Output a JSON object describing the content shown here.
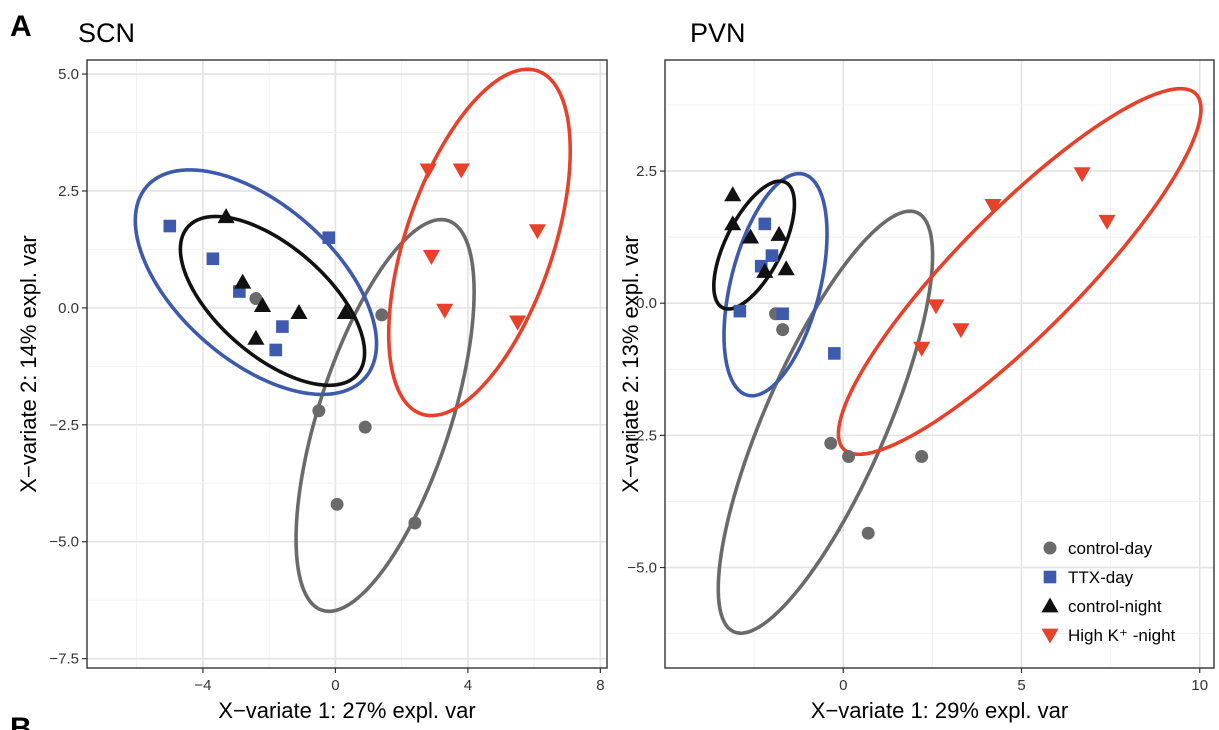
{
  "figure": {
    "panel_label": "A",
    "partial_label": "B"
  },
  "colors": {
    "control-day": "#6a6a6a",
    "TTX-day": "#3e5aad",
    "control-night": "#111111",
    "high-k-night": "#e8412a"
  },
  "legend": {
    "entries": [
      {
        "label": "control-day",
        "shape": "circle",
        "color_key": "control-day"
      },
      {
        "label": "TTX-day",
        "shape": "square",
        "color_key": "TTX-day"
      },
      {
        "label": "control-night",
        "shape": "triangle-up",
        "color_key": "control-night"
      },
      {
        "label": "High K⁺ -night",
        "shape": "triangle-down",
        "color_key": "high-k-night"
      }
    ]
  },
  "chart_data": [
    {
      "type": "scatter",
      "title": "SCN",
      "xlabel": "X−variate 1: 27% expl. var",
      "ylabel": "X−variate 2: 14% expl. var",
      "xlim": [
        -7.5,
        8.2
      ],
      "ylim": [
        -7.7,
        5.3
      ],
      "xticks": [
        -4,
        0,
        4,
        8
      ],
      "xtick_labels": [
        "−4",
        "0",
        "4",
        "8"
      ],
      "yticks": [
        5.0,
        2.5,
        0.0,
        -2.5,
        -5.0,
        -7.5
      ],
      "ytick_labels": [
        "5.0",
        "2.5",
        "0.0",
        "−2.5",
        "−5.0",
        "−7.5"
      ],
      "grid": true,
      "series": [
        {
          "name": "control-day",
          "shape": "circle",
          "color_key": "control-day",
          "points": [
            [
              -2.4,
              0.2
            ],
            [
              -0.5,
              -2.2
            ],
            [
              0.9,
              -2.55
            ],
            [
              0.05,
              -4.2
            ],
            [
              2.4,
              -4.6
            ],
            [
              1.4,
              -0.15
            ]
          ],
          "ellipse": {
            "center": [
              1.5,
              -2.3
            ],
            "rx": 4.6,
            "ry": 1.9,
            "angle_deg": 63
          }
        },
        {
          "name": "TTX-day",
          "shape": "square",
          "color_key": "TTX-day",
          "points": [
            [
              -5.0,
              1.75
            ],
            [
              -3.7,
              1.05
            ],
            [
              -2.9,
              0.35
            ],
            [
              -1.6,
              -0.4
            ],
            [
              -1.8,
              -0.9
            ],
            [
              -0.2,
              1.5
            ]
          ],
          "ellipse": {
            "center": [
              -2.4,
              0.55
            ],
            "rx": 3.95,
            "ry": 1.85,
            "angle_deg": -26
          }
        },
        {
          "name": "control-night",
          "shape": "triangle-up",
          "color_key": "control-night",
          "points": [
            [
              -3.3,
              1.95
            ],
            [
              -2.8,
              0.55
            ],
            [
              -2.2,
              0.05
            ],
            [
              -1.1,
              -0.1
            ],
            [
              0.3,
              -0.1
            ],
            [
              -2.4,
              -0.65
            ]
          ],
          "ellipse": {
            "center": [
              -1.9,
              0.15
            ],
            "rx": 3.05,
            "ry": 1.3,
            "angle_deg": -27
          }
        },
        {
          "name": "High K⁺ -night",
          "shape": "triangle-down",
          "color_key": "high-k-night",
          "points": [
            [
              2.8,
              2.95
            ],
            [
              3.8,
              2.95
            ],
            [
              6.1,
              1.65
            ],
            [
              2.9,
              1.1
            ],
            [
              3.3,
              -0.05
            ],
            [
              5.5,
              -0.3
            ]
          ],
          "ellipse": {
            "center": [
              4.35,
              1.4
            ],
            "rx": 4.1,
            "ry": 2.1,
            "angle_deg": 60
          }
        }
      ]
    },
    {
      "type": "scatter",
      "title": "PVN",
      "xlabel": "X−variate 1: 29% expl. var",
      "ylabel": "X−variate 2: 13% expl. var",
      "xlim": [
        -5.0,
        10.4
      ],
      "ylim": [
        -6.9,
        4.6
      ],
      "xticks": [
        0,
        5,
        10
      ],
      "xtick_labels": [
        "0",
        "5",
        "10"
      ],
      "yticks": [
        2.5,
        0.0,
        -2.5,
        -5.0
      ],
      "ytick_labels": [
        "2.5",
        "0.0",
        "−2.5",
        "−5.0"
      ],
      "grid": true,
      "series": [
        {
          "name": "control-day",
          "shape": "circle",
          "color_key": "control-day",
          "points": [
            [
              -1.9,
              -0.2
            ],
            [
              -1.7,
              -0.5
            ],
            [
              -0.35,
              -2.65
            ],
            [
              0.15,
              -2.9
            ],
            [
              2.2,
              -2.9
            ],
            [
              0.7,
              -4.35
            ]
          ],
          "ellipse": {
            "center": [
              -0.5,
              -2.25
            ],
            "rx": 4.75,
            "ry": 1.55,
            "angle_deg": 55
          }
        },
        {
          "name": "TTX-day",
          "shape": "square",
          "color_key": "TTX-day",
          "points": [
            [
              -2.2,
              1.5
            ],
            [
              -2.0,
              0.9
            ],
            [
              -2.3,
              0.7
            ],
            [
              -1.7,
              -0.2
            ],
            [
              -2.9,
              -0.15
            ],
            [
              -0.25,
              -0.95
            ]
          ],
          "ellipse": {
            "center": [
              -1.9,
              0.35
            ],
            "rx": 2.25,
            "ry": 1.2,
            "angle_deg": 65
          }
        },
        {
          "name": "control-night",
          "shape": "triangle-up",
          "color_key": "control-night",
          "points": [
            [
              -3.1,
              2.05
            ],
            [
              -3.1,
              1.5
            ],
            [
              -2.6,
              1.25
            ],
            [
              -1.8,
              1.3
            ],
            [
              -2.2,
              0.6
            ],
            [
              -1.6,
              0.65
            ]
          ],
          "ellipse": {
            "center": [
              -2.5,
              1.1
            ],
            "rx": 1.5,
            "ry": 0.7,
            "angle_deg": 48
          }
        },
        {
          "name": "High K⁺ -night",
          "shape": "triangle-down",
          "color_key": "high-k-night",
          "points": [
            [
              6.7,
              2.45
            ],
            [
              7.4,
              1.55
            ],
            [
              4.2,
              1.85
            ],
            [
              2.6,
              -0.05
            ],
            [
              3.3,
              -0.5
            ],
            [
              2.2,
              -0.85
            ]
          ],
          "ellipse": {
            "center": [
              4.95,
              0.6
            ],
            "rx": 6.0,
            "ry": 1.35,
            "angle_deg": 33
          }
        }
      ]
    }
  ]
}
